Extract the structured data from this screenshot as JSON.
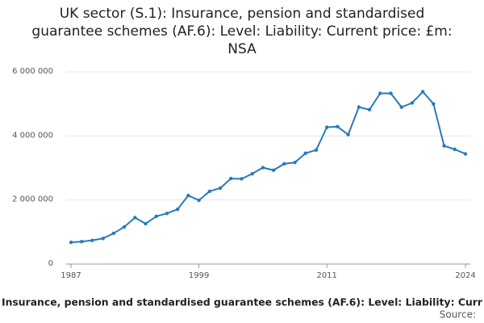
{
  "chart_data": {
    "type": "line",
    "title": "UK sector (S.1): Insurance, pension and standardised guarantee schemes (AF.6): Level: Liability: Current price: £m: NSA",
    "x_label": "Insurance, pension and standardised guarantee schemes (AF.6): Level: Liability: Curr",
    "source": "Source:",
    "x": [
      1987,
      1988,
      1989,
      1990,
      1991,
      1992,
      1993,
      1994,
      1995,
      1996,
      1997,
      1998,
      1999,
      2000,
      2001,
      2002,
      2003,
      2004,
      2005,
      2006,
      2007,
      2008,
      2009,
      2010,
      2011,
      2012,
      2013,
      2014,
      2015,
      2016,
      2017,
      2018,
      2019,
      2020,
      2021,
      2022,
      2023,
      2024
    ],
    "series": [
      {
        "color": "#2a7ab9",
        "values": [
          680000,
          700000,
          740000,
          800000,
          960000,
          1160000,
          1450000,
          1260000,
          1490000,
          1580000,
          1710000,
          2140000,
          1990000,
          2270000,
          2370000,
          2670000,
          2660000,
          2820000,
          3010000,
          2930000,
          3130000,
          3170000,
          3460000,
          3560000,
          4270000,
          4290000,
          4040000,
          4900000,
          4820000,
          5330000,
          5330000,
          4900000,
          5030000,
          5380000,
          5000000,
          3690000,
          3580000,
          3440000
        ]
      }
    ],
    "xlim": [
      1987,
      2024
    ],
    "xticks": [
      1987,
      1999,
      2011,
      2024
    ],
    "ylim": [
      0,
      6000000
    ],
    "yticks": [
      0,
      {
        "value": 2000000,
        "label": "2 000 000"
      },
      {
        "value": 4000000,
        "label": "4 000 000"
      },
      {
        "value": 6000000,
        "label": "6 000 000"
      }
    ],
    "grid": true
  }
}
